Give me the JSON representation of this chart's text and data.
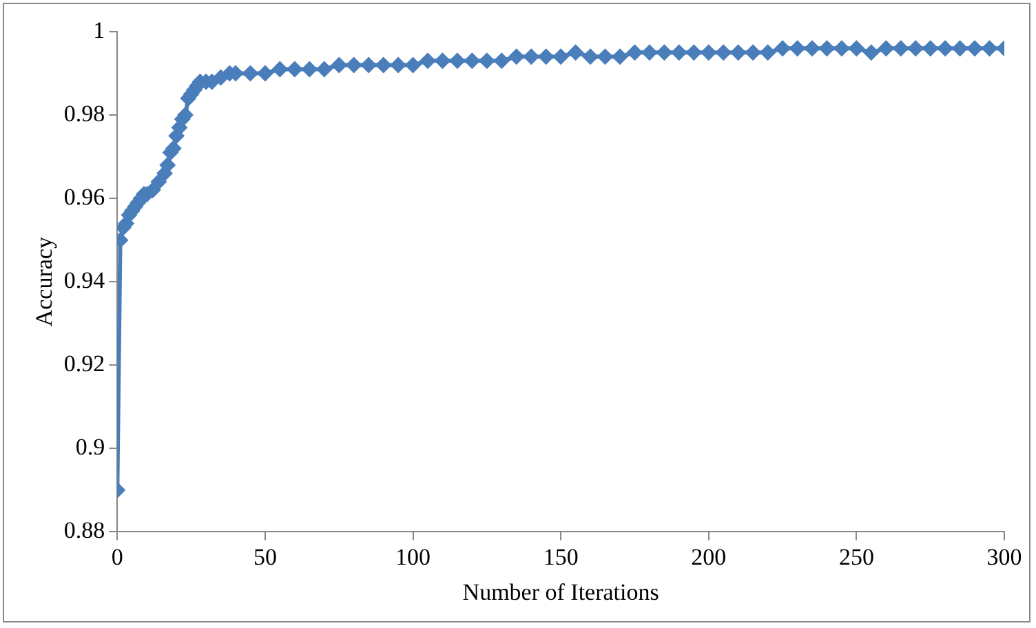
{
  "chart_data": {
    "type": "line",
    "xlabel": "Number of Iterations",
    "ylabel": "Accuracy",
    "xlim": [
      0,
      300
    ],
    "xticks": [
      0,
      50,
      100,
      150,
      200,
      250,
      300
    ],
    "ylim": [
      0.88,
      1
    ],
    "yticks": [
      0.88,
      0.9,
      0.92,
      0.94,
      0.96,
      0.98,
      1
    ],
    "grid": false,
    "legend": false,
    "marker": "diamond",
    "line_style": "solid",
    "series": [
      {
        "color": "#4a7ebb",
        "x": [
          0,
          1,
          2,
          3,
          4,
          5,
          6,
          7,
          8,
          9,
          10,
          12,
          14,
          16,
          17,
          18,
          19,
          20,
          21,
          22,
          23,
          24,
          25,
          26,
          27,
          28,
          30,
          32,
          35,
          38,
          40,
          45,
          50,
          55,
          60,
          65,
          70,
          75,
          80,
          85,
          90,
          95,
          100,
          105,
          110,
          115,
          120,
          125,
          130,
          135,
          140,
          145,
          150,
          155,
          160,
          165,
          170,
          175,
          180,
          185,
          190,
          195,
          200,
          205,
          210,
          215,
          220,
          225,
          230,
          235,
          240,
          245,
          250,
          255,
          260,
          265,
          270,
          275,
          280,
          285,
          290,
          295,
          300
        ],
        "values": [
          0.89,
          0.95,
          0.953,
          0.954,
          0.956,
          0.957,
          0.958,
          0.959,
          0.96,
          0.961,
          0.961,
          0.962,
          0.964,
          0.966,
          0.968,
          0.971,
          0.972,
          0.975,
          0.977,
          0.979,
          0.98,
          0.984,
          0.985,
          0.986,
          0.987,
          0.988,
          0.988,
          0.988,
          0.989,
          0.99,
          0.99,
          0.99,
          0.99,
          0.991,
          0.991,
          0.991,
          0.991,
          0.992,
          0.992,
          0.992,
          0.992,
          0.992,
          0.992,
          0.993,
          0.993,
          0.993,
          0.993,
          0.993,
          0.993,
          0.994,
          0.994,
          0.994,
          0.994,
          0.995,
          0.994,
          0.994,
          0.994,
          0.995,
          0.995,
          0.995,
          0.995,
          0.995,
          0.995,
          0.995,
          0.995,
          0.995,
          0.995,
          0.996,
          0.996,
          0.996,
          0.996,
          0.996,
          0.996,
          0.995,
          0.996,
          0.996,
          0.996,
          0.996,
          0.996,
          0.996,
          0.996,
          0.996,
          0.996
        ]
      }
    ]
  }
}
